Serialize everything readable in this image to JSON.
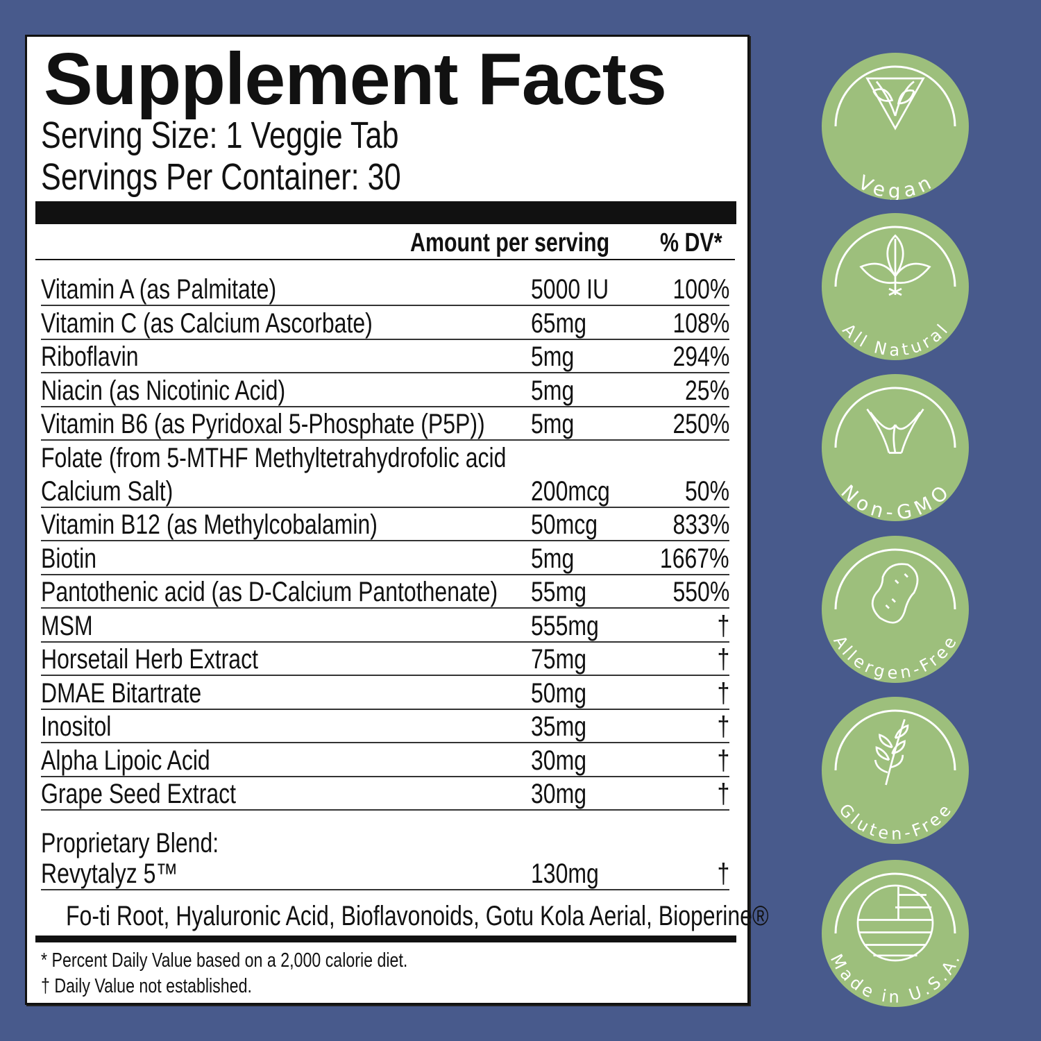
{
  "title": "Supplement Facts",
  "serving_size": "Serving Size: 1 Veggie Tab",
  "servings_per_container": "Servings Per Container: 30",
  "columns": {
    "amount": "Amount per serving",
    "dv": "% DV*"
  },
  "rows": [
    {
      "name": "Vitamin A (as Palmitate)",
      "amount": "5000 IU",
      "dv": "100%"
    },
    {
      "name": "Vitamin C (as Calcium Ascorbate)",
      "amount": "65mg",
      "dv": "108%"
    },
    {
      "name": "Riboflavin",
      "amount": "5mg",
      "dv": "294%"
    },
    {
      "name": "Niacin (as Nicotinic Acid)",
      "amount": "5mg",
      "dv": "25%"
    },
    {
      "name": "Vitamin B6 (as Pyridoxal 5-Phosphate  (P5P))",
      "amount": "5mg",
      "dv": "250%"
    },
    {
      "name": "Folate (from 5-MTHF Methyltetrahydrofolic acid",
      "name2": "Calcium Salt)",
      "amount": "200mcg",
      "dv": "50%"
    },
    {
      "name": "Vitamin B12 (as Methylcobalamin)",
      "amount": "50mcg",
      "dv": "833%"
    },
    {
      "name": "Biotin",
      "amount": "5mg",
      "dv": "1667%"
    },
    {
      "name": "Pantothenic acid (as D-Calcium Pantothenate)",
      "amount": "55mg",
      "dv": "550%"
    },
    {
      "name": "MSM",
      "amount": "555mg",
      "dv": "†"
    },
    {
      "name": "Horsetail Herb Extract",
      "amount": "75mg",
      "dv": "†"
    },
    {
      "name": "DMAE Bitartrate",
      "amount": "50mg",
      "dv": "†"
    },
    {
      "name": "Inositol",
      "amount": "35mg",
      "dv": "†"
    },
    {
      "name": "Alpha Lipoic Acid",
      "amount": "30mg",
      "dv": "†"
    },
    {
      "name": "Grape Seed Extract",
      "amount": "30mg",
      "dv": "†"
    }
  ],
  "blend": {
    "heading": "Proprietary Blend:",
    "name": "Revytalyz 5™",
    "amount": "130mg",
    "dv": "†",
    "ingredients": "Fo-ti Root, Hyaluronic Acid, Bioflavonoids, Gotu Kola Aerial, Bioperine®"
  },
  "footnotes": [
    "* Percent Daily Value based on a 2,000 calorie diet.",
    "† Daily Value not established."
  ],
  "badges": [
    {
      "label": "Vegan",
      "icon": "v-leaf-icon"
    },
    {
      "label": "All Natural",
      "icon": "leaves-icon"
    },
    {
      "label": "Non-GMO",
      "icon": "sprout-icon"
    },
    {
      "label": "Allergen-Free",
      "icon": "peanut-icon"
    },
    {
      "label": "Gluten-Free",
      "icon": "wheat-icon"
    },
    {
      "label": "Made in U.S.A.",
      "icon": "us-flag-icon"
    }
  ],
  "colors": {
    "background": "#485a8c",
    "badge": "#9dbf7c",
    "label": "#ffffff",
    "text": "#111111"
  }
}
